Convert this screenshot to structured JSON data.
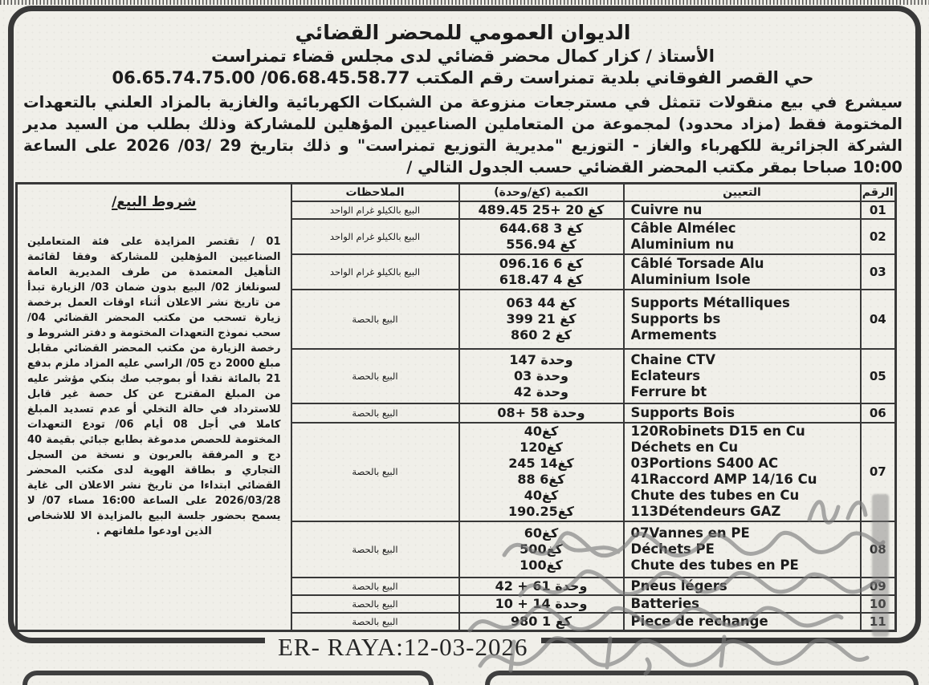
{
  "colors": {
    "paper": "#f0efe9",
    "ink": "#1c1c1c",
    "table_border": "#383838",
    "handwriting": "#7a7a7a"
  },
  "header": {
    "office_title": "الديوان العمومي للمحضر القضائي",
    "bailiff_line": "الأستاذ / كزار كمال محضر قضائي لدى مجلس قضاء تمنراست",
    "address_line": "حي القصر الفوقاني بلدية تمنراست رقم المكتب 06.68.45.58.77/ 06.65.74.75.00"
  },
  "intro": {
    "text": "سيشرع في بيع منقولات تتمثل في مسترجعات منزوعة من الشبكات الكهربائية والغازية بالمزاد العلني بالتعهدات المختومة فقط (مزاد محدود) لمجموعة من المتعاملين الصناعيين المؤهلين للمشاركة وذلك بطلب من السيد مدير الشركة الجزائرية للكهرباء والغاز - التوزيع \"مديرية التوزيع تمنراست\" و ذلك بتاريخ 29 /03/ 2026 على الساعة 10:00 صباحا بمقر مكتب المحضر القضائي حسب الجدول التالي /"
  },
  "table": {
    "headers": {
      "num": "الرقم",
      "designation": "التعيين",
      "quantity": "الكمية (كغ/وحدة)",
      "notes": "الملاحظات"
    },
    "conditions": {
      "title": "شروط البيع/",
      "body": "01 / تقتصر المزايدة على فئة المتعاملين الصناعيين المؤهلين للمشاركة وفقا لقائمة التأهيل المعتمدة من طرف المديرية العامة لسونلغاز 02/ البيع بدون ضمان 03/ الزيارة تبدأ من تاريخ نشر الاعلان أثناء اوقات العمل برخصة زيارة تسحب من مكتب المحضر القضائي 04/ سحب نموذج التعهدات المختومة و دفتر الشروط و رخصة الزيارة من مكتب المحضر القضائي مقابل مبلغ 2000 دج 05/ الراسي عليه المزاد ملزم بدفع 21 بالمائة نقدا أو بموجب صك بنكي مؤشر عليه من المبلغ المقترح عن كل حصة غير قابل للاسترداد في حالة التخلي أو عدم تسديد المبلغ كاملا في أجل 08 أيام 06/ تودع التعهدات المختومة للحصص مدموغة بطابع جبائي بقيمة 40 دج و المرفقة بالعربون و نسخة من السجل التجاري و بطاقة الهوية لدى مكتب المحضر القضائي ابتداءا من تاريخ نشر الاعلان الى غاية 2026/03/28 على الساعة 16:00 مساء 07/ لا يسمح بحضور جلسة البيع بالمزايدة الا للاشخاص الذين اودعوا ملفاتهم ."
    },
    "rows": [
      {
        "num": "01",
        "designation": [
          "Cuivre nu"
        ],
        "quantity": [
          "كغ 20 +25 489.45"
        ],
        "note": "البيع بالكيلو غرام الواحد"
      },
      {
        "num": "02",
        "designation": [
          "Câble Almélec",
          "Aluminium nu"
        ],
        "quantity": [
          "كغ 3 644.68",
          "كغ 556.94"
        ],
        "note": "البيع بالكيلو غرام الواحد"
      },
      {
        "num": "03",
        "designation": [
          "Câblé Torsade Alu",
          "Aluminium Isole"
        ],
        "quantity": [
          "كغ 6 096.16",
          "كغ 4 618.47"
        ],
        "note": "البيع بالكيلو غرام الواحد"
      },
      {
        "num": "04",
        "designation": [
          "Supports Métalliques",
          "Supports bs",
          "Armements"
        ],
        "quantity": [
          "كغ 44 063",
          "كغ 21 399",
          "كغ 2 860"
        ],
        "note": "البيع بالحصة"
      },
      {
        "num": "05",
        "designation": [
          "Chaine CTV",
          "Eclateurs",
          "Ferrure bt"
        ],
        "quantity": [
          "وحدة 147",
          "وحدة 03",
          "وحدة 42"
        ],
        "note": "البيع بالحصة"
      },
      {
        "num": "06",
        "designation": [
          "Supports Bois"
        ],
        "quantity": [
          "وحدة 58 +08"
        ],
        "note": "البيع بالحصة"
      },
      {
        "num": "07",
        "designation": [
          "120Robinets D15 en Cu",
          "Déchets en Cu",
          "03Portions S400 AC",
          "41Raccord AMP 14/16 Cu",
          "Chute des tubes en Cu",
          "113Détendeurs GAZ"
        ],
        "quantity": [
          "كغ40",
          "كغ120",
          "كغ14 245",
          "كغ6 88",
          "كغ40",
          "كغ190.25"
        ],
        "note": "البيع بالحصة"
      },
      {
        "num": "08",
        "designation": [
          "07Vannes en PE",
          "Déchets PE",
          "Chute des tubes en PE"
        ],
        "quantity": [
          "كغ60",
          "كغ500",
          "كغ100"
        ],
        "note": "البيع بالحصة"
      },
      {
        "num": "09",
        "designation": [
          "Pneus légers"
        ],
        "quantity": [
          "وحدة 61 + 42"
        ],
        "note": "البيع بالحصة"
      },
      {
        "num": "10",
        "designation": [
          "Batteries"
        ],
        "quantity": [
          "وحدة 14 + 10"
        ],
        "note": "البيع بالحصة"
      },
      {
        "num": "11",
        "designation": [
          "Piece de rechange"
        ],
        "quantity": [
          "كغ 1 980"
        ],
        "note": "البيع بالحصة"
      }
    ]
  },
  "footer": {
    "publisher_date": "ER- RAYA:12-03-2026"
  }
}
